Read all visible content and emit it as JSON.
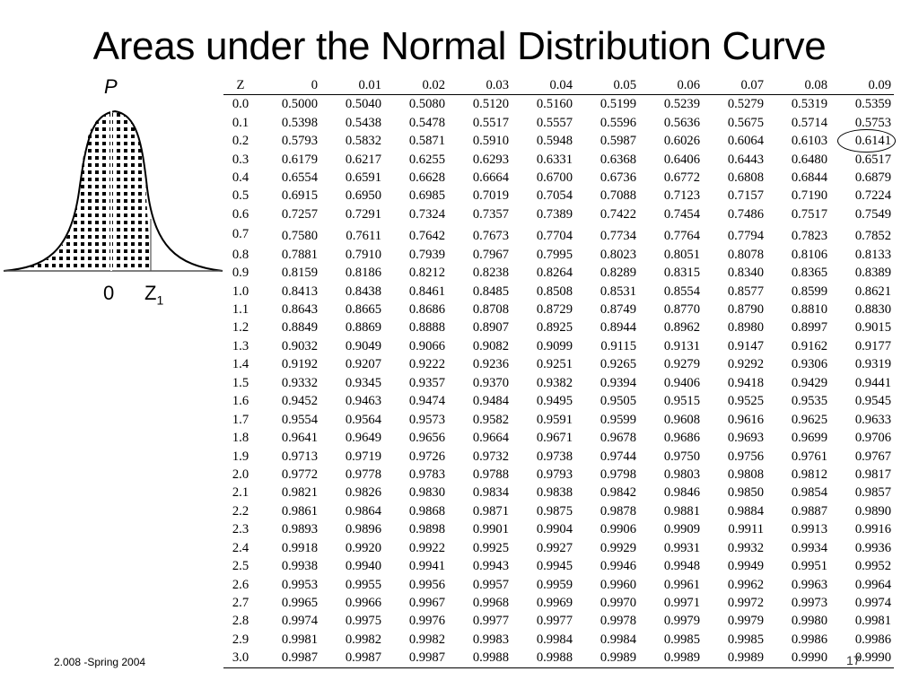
{
  "title": "Areas under the Normal Distribution Curve",
  "figure": {
    "p_label": "P",
    "zero_label": "0",
    "z_label": "Z",
    "z_subscript": "1"
  },
  "table": {
    "headers": [
      "Z",
      "0",
      "0.01",
      "0.02",
      "0.03",
      "0.04",
      "0.05",
      "0.06",
      "0.07",
      "0.08",
      "0.09"
    ],
    "rows": [
      [
        "0.0",
        "0.5000",
        "0.5040",
        "0.5080",
        "0.5120",
        "0.5160",
        "0.5199",
        "0.5239",
        "0.5279",
        "0.5319",
        "0.5359"
      ],
      [
        "0.1",
        "0.5398",
        "0.5438",
        "0.5478",
        "0.5517",
        "0.5557",
        "0.5596",
        "0.5636",
        "0.5675",
        "0.5714",
        "0.5753"
      ],
      [
        "0.2",
        "0.5793",
        "0.5832",
        "0.5871",
        "0.5910",
        "0.5948",
        "0.5987",
        "0.6026",
        "0.6064",
        "0.6103",
        "0.6141"
      ],
      [
        "0.3",
        "0.6179",
        "0.6217",
        "0.6255",
        "0.6293",
        "0.6331",
        "0.6368",
        "0.6406",
        "0.6443",
        "0.6480",
        "0.6517"
      ],
      [
        "0.4",
        "0.6554",
        "0.6591",
        "0.6628",
        "0.6664",
        "0.6700",
        "0.6736",
        "0.6772",
        "0.6808",
        "0.6844",
        "0.6879"
      ],
      [
        "0.5",
        "0.6915",
        "0.6950",
        "0.6985",
        "0.7019",
        "0.7054",
        "0.7088",
        "0.7123",
        "0.7157",
        "0.7190",
        "0.7224"
      ],
      [
        "0.6",
        "0.7257",
        "0.7291",
        "0.7324",
        "0.7357",
        "0.7389",
        "0.7422",
        "0.7454",
        "0.7486",
        "0.7517",
        "0.7549"
      ],
      [
        "0.7",
        "0.7580",
        "0.7611",
        "0.7642",
        "0.7673",
        "0.7704",
        "0.7734",
        "0.7764",
        "0.7794",
        "0.7823",
        "0.7852"
      ],
      [
        "0.8",
        "0.7881",
        "0.7910",
        "0.7939",
        "0.7967",
        "0.7995",
        "0.8023",
        "0.8051",
        "0.8078",
        "0.8106",
        "0.8133"
      ],
      [
        "0.9",
        "0.8159",
        "0.8186",
        "0.8212",
        "0.8238",
        "0.8264",
        "0.8289",
        "0.8315",
        "0.8340",
        "0.8365",
        "0.8389"
      ],
      [
        "1.0",
        "0.8413",
        "0.8438",
        "0.8461",
        "0.8485",
        "0.8508",
        "0.8531",
        "0.8554",
        "0.8577",
        "0.8599",
        "0.8621"
      ],
      [
        "1.1",
        "0.8643",
        "0.8665",
        "0.8686",
        "0.8708",
        "0.8729",
        "0.8749",
        "0.8770",
        "0.8790",
        "0.8810",
        "0.8830"
      ],
      [
        "1.2",
        "0.8849",
        "0.8869",
        "0.8888",
        "0.8907",
        "0.8925",
        "0.8944",
        "0.8962",
        "0.8980",
        "0.8997",
        "0.9015"
      ],
      [
        "1.3",
        "0.9032",
        "0.9049",
        "0.9066",
        "0.9082",
        "0.9099",
        "0.9115",
        "0.9131",
        "0.9147",
        "0.9162",
        "0.9177"
      ],
      [
        "1.4",
        "0.9192",
        "0.9207",
        "0.9222",
        "0.9236",
        "0.9251",
        "0.9265",
        "0.9279",
        "0.9292",
        "0.9306",
        "0.9319"
      ],
      [
        "1.5",
        "0.9332",
        "0.9345",
        "0.9357",
        "0.9370",
        "0.9382",
        "0.9394",
        "0.9406",
        "0.9418",
        "0.9429",
        "0.9441"
      ],
      [
        "1.6",
        "0.9452",
        "0.9463",
        "0.9474",
        "0.9484",
        "0.9495",
        "0.9505",
        "0.9515",
        "0.9525",
        "0.9535",
        "0.9545"
      ],
      [
        "1.7",
        "0.9554",
        "0.9564",
        "0.9573",
        "0.9582",
        "0.9591",
        "0.9599",
        "0.9608",
        "0.9616",
        "0.9625",
        "0.9633"
      ],
      [
        "1.8",
        "0.9641",
        "0.9649",
        "0.9656",
        "0.9664",
        "0.9671",
        "0.9678",
        "0.9686",
        "0.9693",
        "0.9699",
        "0.9706"
      ],
      [
        "1.9",
        "0.9713",
        "0.9719",
        "0.9726",
        "0.9732",
        "0.9738",
        "0.9744",
        "0.9750",
        "0.9756",
        "0.9761",
        "0.9767"
      ],
      [
        "2.0",
        "0.9772",
        "0.9778",
        "0.9783",
        "0.9788",
        "0.9793",
        "0.9798",
        "0.9803",
        "0.9808",
        "0.9812",
        "0.9817"
      ],
      [
        "2.1",
        "0.9821",
        "0.9826",
        "0.9830",
        "0.9834",
        "0.9838",
        "0.9842",
        "0.9846",
        "0.9850",
        "0.9854",
        "0.9857"
      ],
      [
        "2.2",
        "0.9861",
        "0.9864",
        "0.9868",
        "0.9871",
        "0.9875",
        "0.9878",
        "0.9881",
        "0.9884",
        "0.9887",
        "0.9890"
      ],
      [
        "2.3",
        "0.9893",
        "0.9896",
        "0.9898",
        "0.9901",
        "0.9904",
        "0.9906",
        "0.9909",
        "0.9911",
        "0.9913",
        "0.9916"
      ],
      [
        "2.4",
        "0.9918",
        "0.9920",
        "0.9922",
        "0.9925",
        "0.9927",
        "0.9929",
        "0.9931",
        "0.9932",
        "0.9934",
        "0.9936"
      ],
      [
        "2.5",
        "0.9938",
        "0.9940",
        "0.9941",
        "0.9943",
        "0.9945",
        "0.9946",
        "0.9948",
        "0.9949",
        "0.9951",
        "0.9952"
      ],
      [
        "2.6",
        "0.9953",
        "0.9955",
        "0.9956",
        "0.9957",
        "0.9959",
        "0.9960",
        "0.9961",
        "0.9962",
        "0.9963",
        "0.9964"
      ],
      [
        "2.7",
        "0.9965",
        "0.9966",
        "0.9967",
        "0.9968",
        "0.9969",
        "0.9970",
        "0.9971",
        "0.9972",
        "0.9973",
        "0.9974"
      ],
      [
        "2.8",
        "0.9974",
        "0.9975",
        "0.9976",
        "0.9977",
        "0.9977",
        "0.9978",
        "0.9979",
        "0.9979",
        "0.9980",
        "0.9981"
      ],
      [
        "2.9",
        "0.9981",
        "0.9982",
        "0.9982",
        "0.9983",
        "0.9984",
        "0.9984",
        "0.9985",
        "0.9985",
        "0.9986",
        "0.9986"
      ],
      [
        "3.0",
        "0.9987",
        "0.9987",
        "0.9987",
        "0.9988",
        "0.9988",
        "0.9989",
        "0.9989",
        "0.9989",
        "0.9990",
        "0.9990"
      ]
    ],
    "highlighted_value": "0.6141"
  },
  "footer": "2.008 -Spring 2004",
  "page_number": "17"
}
